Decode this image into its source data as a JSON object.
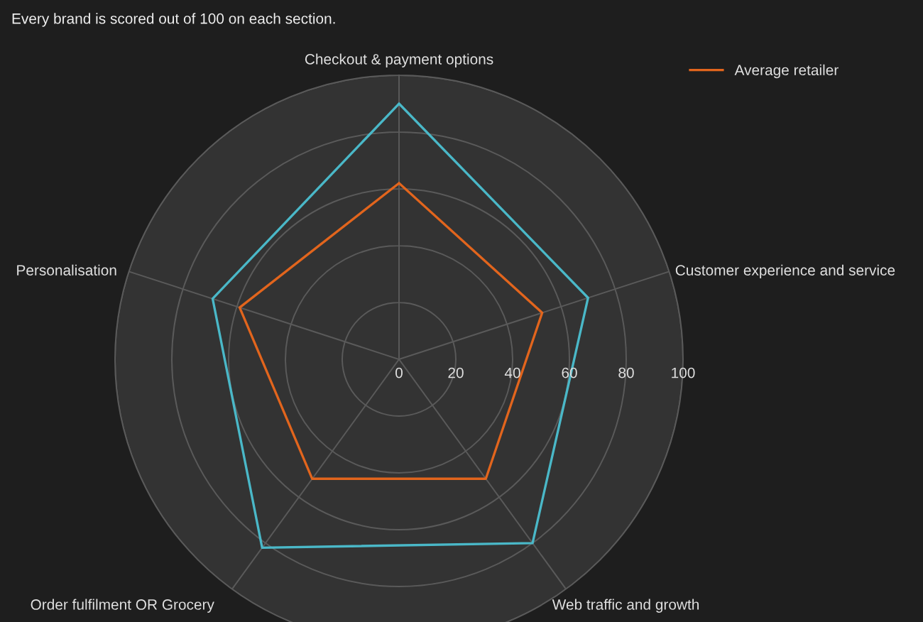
{
  "chart_data": {
    "type": "radar",
    "title": "Every brand is scored out of 100 on each section.",
    "categories": [
      "Checkout & payment options",
      "Customer experience and service",
      "Web traffic and growth",
      "Order fulfilment OR Grocery",
      "Personalisation"
    ],
    "series": [
      {
        "color": "#4ab8c8",
        "values": [
          90,
          70,
          80,
          82,
          69
        ]
      },
      {
        "name": "Average retailer",
        "color": "#e2651d",
        "values": [
          62,
          53,
          52,
          52,
          59
        ]
      }
    ],
    "ylim": [
      0,
      100
    ],
    "yticks": [
      0,
      20,
      40,
      60,
      80,
      100
    ],
    "grid": true,
    "legend": "top right"
  }
}
